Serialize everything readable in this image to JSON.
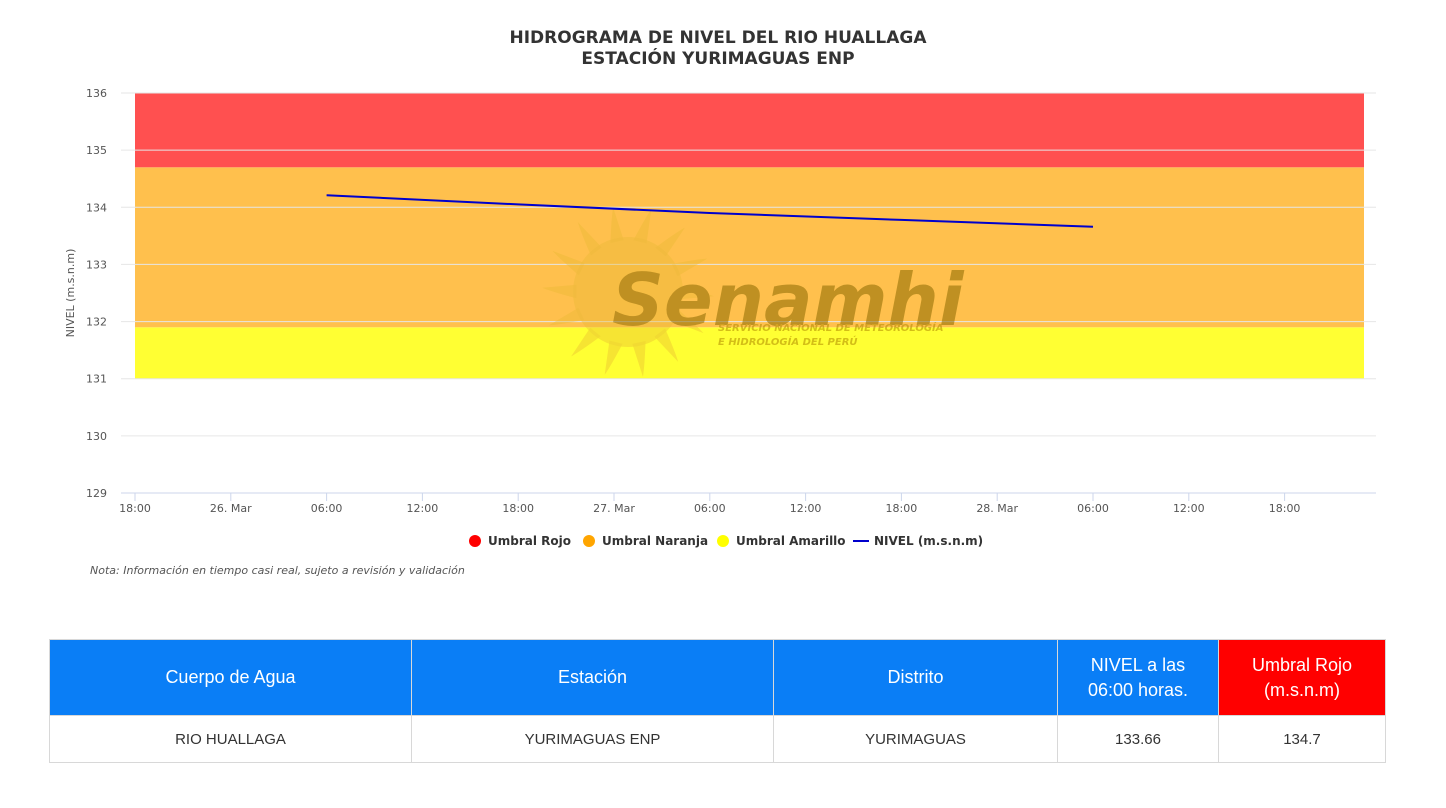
{
  "chart_data": {
    "type": "line",
    "title": "HIDROGRAMA DE NIVEL DEL RIO HUALLAGA",
    "subtitle": "ESTACIÓN YURIMAGUAS ENP",
    "ylabel": "NIVEL (m.s.n.m)",
    "ylim": [
      129,
      136
    ],
    "yticks": [
      "129",
      "130",
      "131",
      "132",
      "133",
      "134",
      "135",
      "136"
    ],
    "xticks": [
      "18:00",
      "26. Mar",
      "06:00",
      "12:00",
      "18:00",
      "27. Mar",
      "06:00",
      "12:00",
      "18:00",
      "28. Mar",
      "06:00",
      "12:00",
      "18:00"
    ],
    "x_start": "25 Mar 18:00",
    "x_step_hours": 6,
    "bands": [
      {
        "name": "Umbral Amarillo",
        "from": 131.0,
        "to": 131.9,
        "color": "#ffff33"
      },
      {
        "name": "Umbral Naranja",
        "from": 131.9,
        "to": 134.7,
        "color": "#ffc04d"
      },
      {
        "name": "Umbral Rojo",
        "from": 134.7,
        "to": 136.0,
        "color": "#ff5050"
      }
    ],
    "series": [
      {
        "name": "NIVEL (m.s.n.m)",
        "color": "#0000cc",
        "points": [
          {
            "x": "26 Mar 06:00",
            "y": 134.21
          },
          {
            "x": "26 Mar 18:00",
            "y": 134.05
          },
          {
            "x": "27 Mar 06:00",
            "y": 133.9
          },
          {
            "x": "27 Mar 18:00",
            "y": 133.78
          },
          {
            "x": "28 Mar 06:00",
            "y": 133.66
          }
        ]
      }
    ],
    "legend": [
      {
        "label": "Umbral Rojo",
        "color": "#ff0000",
        "kind": "dot"
      },
      {
        "label": "Umbral Naranja",
        "color": "#ffa500",
        "kind": "dot"
      },
      {
        "label": "Umbral Amarillo",
        "color": "#ffff00",
        "kind": "dot"
      },
      {
        "label": "NIVEL (m.s.n.m)",
        "color": "#0000cc",
        "kind": "line"
      }
    ],
    "legend_position": "bottom",
    "grid": true
  },
  "note": "Nota: Información en tiempo casi real, sujeto a revisión y validación",
  "watermark": {
    "brand": "Senamhi",
    "line1": "SERVICIO NACIONAL DE METEOROLOGÍA",
    "line2": "E HIDROLOGÍA DEL PERÚ"
  },
  "table": {
    "headers": [
      "Cuerpo de Agua",
      "Estación",
      "Distrito",
      "NIVEL a las 06:00 horas.",
      "Umbral Rojo (m.s.n.m)"
    ],
    "row": [
      "RIO HUALLAGA",
      "YURIMAGUAS ENP",
      "YURIMAGUAS",
      "133.66",
      "134.7"
    ],
    "header_colors": [
      "#0a7ef6",
      "#0a7ef6",
      "#0a7ef6",
      "#0a7ef6",
      "#ff0000"
    ]
  }
}
